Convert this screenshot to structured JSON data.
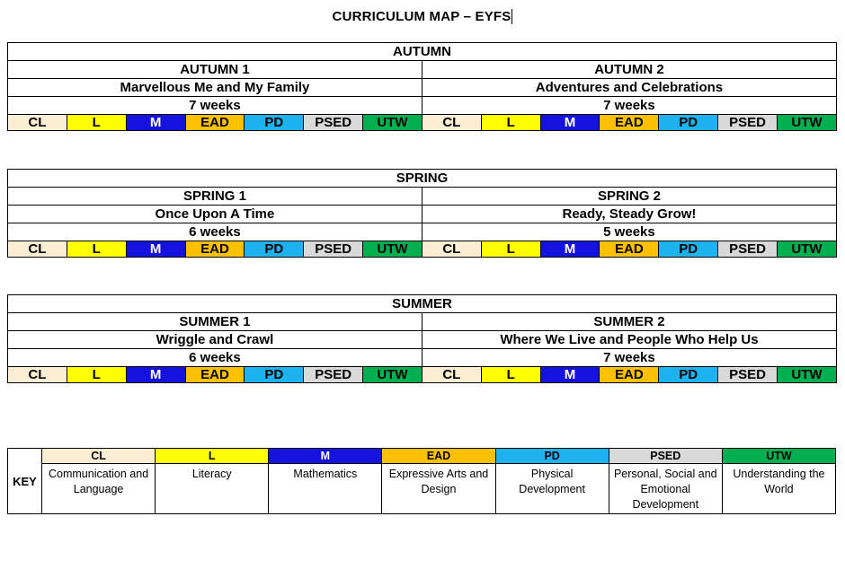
{
  "title": "CURRICULUM MAP – EYFS",
  "key_label": "KEY",
  "subjects": [
    {
      "code": "CL",
      "color": "#FBEED3",
      "text_color": "#000000",
      "description": "Communication and Language"
    },
    {
      "code": "L",
      "color": "#FFFF00",
      "text_color": "#000000",
      "description": "Literacy"
    },
    {
      "code": "M",
      "color": "#1512E0",
      "text_color": "#FFFFFF",
      "description": "Mathematics"
    },
    {
      "code": "EAD",
      "color": "#FFC000",
      "text_color": "#000000",
      "description": "Expressive Arts and Design"
    },
    {
      "code": "PD",
      "color": "#1CB3F0",
      "text_color": "#000000",
      "description": "Physical Development"
    },
    {
      "code": "PSED",
      "color": "#D9D9D9",
      "text_color": "#000000",
      "description": "Personal, Social and Emotional Development"
    },
    {
      "code": "UTW",
      "color": "#00B050",
      "text_color": "#000000",
      "description": "Understanding the World"
    }
  ],
  "terms": [
    {
      "season": "AUTUMN",
      "halves": [
        {
          "name": "AUTUMN 1",
          "theme": "Marvellous Me and My Family",
          "duration": "7 weeks"
        },
        {
          "name": "AUTUMN 2",
          "theme": "Adventures and Celebrations",
          "duration": "7 weeks"
        }
      ]
    },
    {
      "season": "SPRING",
      "halves": [
        {
          "name": "SPRING 1",
          "theme": "Once Upon A Time",
          "duration": "6 weeks"
        },
        {
          "name": "SPRING 2",
          "theme": "Ready, Steady Grow!",
          "duration": "5 weeks"
        }
      ]
    },
    {
      "season": "SUMMER",
      "halves": [
        {
          "name": "SUMMER 1",
          "theme": "Wriggle and Crawl",
          "duration": "6 weeks"
        },
        {
          "name": "SUMMER 2",
          "theme": "Where We Live and People Who Help Us",
          "duration": "7 weeks"
        }
      ]
    }
  ]
}
